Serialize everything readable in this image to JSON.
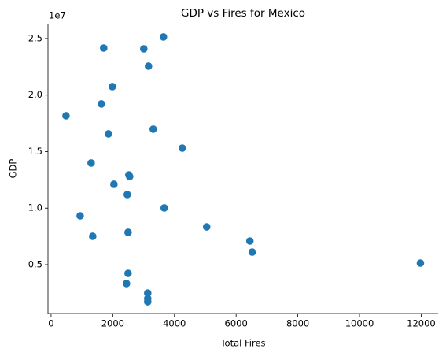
{
  "chart_data": {
    "type": "scatter",
    "title": "GDP vs Fires for Mexico",
    "x_label": "Total Fires",
    "y_label": "GDP",
    "y_offset_label": "1e7",
    "color": "#1f77b4",
    "x": [
      3643,
      1707,
      3006,
      3159,
      1987,
      1631,
      484,
      1860,
      3312,
      4255,
      1299,
      2522,
      2548,
      2038,
      2471,
      3669,
      943,
      5045,
      1350,
      2497,
      6446,
      6522,
      11975,
      2497,
      2446,
      3134,
      3134,
      3134
    ],
    "values": [
      25140000,
      24160000,
      24090000,
      22560000,
      20750000,
      19220000,
      18170000,
      16570000,
      16990000,
      15310000,
      13990000,
      12940000,
      12800000,
      12110000,
      11200000,
      10020000,
      9320000,
      8340000,
      7510000,
      7860000,
      7090000,
      6110000,
      5140000,
      4230000,
      3330000,
      2490000,
      2000000,
      1720000
    ],
    "xlim": [
      -100,
      12550
    ],
    "xticks": [
      0,
      2000,
      4000,
      6000,
      8000,
      10000,
      12000
    ],
    "ylim": [
      680000,
      26320000
    ],
    "yticks": [
      {
        "value": 5000000,
        "label": "0.5"
      },
      {
        "value": 10000000,
        "label": "1.0"
      },
      {
        "value": 15000000,
        "label": "1.5"
      },
      {
        "value": 20000000,
        "label": "2.0"
      },
      {
        "value": 25000000,
        "label": "2.5"
      }
    ]
  }
}
